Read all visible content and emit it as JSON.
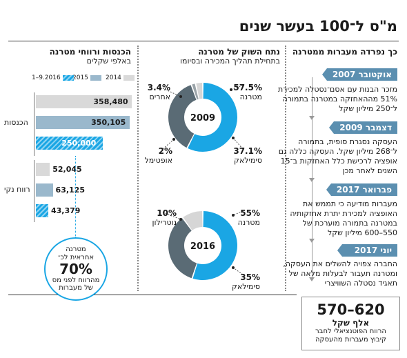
{
  "title": "מ\"ס ל־100 בעשר שנים",
  "timeline": {
    "heading": "כך נפרדה מעברות ממטרנה",
    "events": [
      {
        "date": "אוקטובר 2007",
        "lines": [
          "מזכר הבנות עם אסם־נסטלה למכירת",
          "51% מההאחזקה במטרנה בתמורה",
          "ל־250 מיליון שקל"
        ]
      },
      {
        "date": "דצמבר 2009",
        "lines": [
          "העסקה נסגרת סופית, בתמורה",
          "ל־268 מיליון שקל. העסקה כללה גם",
          "אופציה לרכישת כלל האחזקות ב־15",
          "השנים לאחר מכן"
        ]
      },
      {
        "date": "פברואר 2017",
        "lines": [
          "מעברות מודיעה כי תממש את",
          "האופציה למכירת יתרת אחזקותיה",
          "במטרנה בתמורה מוערכת של",
          "550–600 מיליון שקל"
        ]
      },
      {
        "date": "יוני 2017",
        "lines": [
          "החברה צפויה להשלים את העסקה,",
          "ומטרנה תעבור לבעלות מלאה של",
          "תאגיד נסטלה השוויצרי"
        ]
      }
    ],
    "result": {
      "value": "570–620",
      "unit": "אלף שקל",
      "desc": [
        "הרווח הפוטנציאלי לחבר",
        "קיבוץ מעברות מהעסקה"
      ]
    }
  },
  "market_share": {
    "title": "נתח השוק של מטרנה",
    "subtitle": "בתחילת תהליך המכירה ובסיומו",
    "colors": {
      "materna": "#1aa6e4",
      "similac": "#5a6b75",
      "optimal": "#9aa3a8",
      "others": "#d6d6d6"
    }
  },
  "revenues": {
    "title": "הכנסות ורווחי מטרנה",
    "subtitle": "באלפי שקלים",
    "legend": [
      "2014",
      "2015",
      "1–9.2016"
    ],
    "colors": {
      "y2014": "#d9d9d9",
      "y2015": "#9ab8cc",
      "y2016": "#1aa6e4"
    },
    "group_labels": [
      "הכנסות",
      "רווח נקי"
    ],
    "badge": {
      "l1": "מטרנה",
      "l2": "אחראית לכ־",
      "big": "70%",
      "l3": "מהרווח לפני מס",
      "l4": "של מעברות"
    }
  },
  "chart_data": [
    {
      "type": "pie",
      "title": "2009",
      "slices": [
        {
          "name": "מטרנה",
          "value": 57.5
        },
        {
          "name": "סימילאק",
          "value": 37.1
        },
        {
          "name": "אופטימל",
          "value": 2
        },
        {
          "name": "אחרים",
          "value": 3.4
        }
      ]
    },
    {
      "type": "pie",
      "title": "2016",
      "slices": [
        {
          "name": "מטרנה",
          "value": 55
        },
        {
          "name": "סימילאק",
          "value": 35
        },
        {
          "name": "נוטרילון",
          "value": 10
        }
      ]
    },
    {
      "type": "bar",
      "orientation": "horizontal",
      "categories": [
        "הכנסות",
        "רווח נקי"
      ],
      "series": [
        {
          "name": "2014",
          "values": [
            358480,
            52045
          ]
        },
        {
          "name": "2015",
          "values": [
            350105,
            63125
          ]
        },
        {
          "name": "1–9.2016",
          "values": [
            250000,
            43379
          ]
        }
      ],
      "value_labels": [
        "358,480",
        "350,105",
        "250,000",
        "52,045",
        "63,125",
        "43,379"
      ]
    }
  ]
}
